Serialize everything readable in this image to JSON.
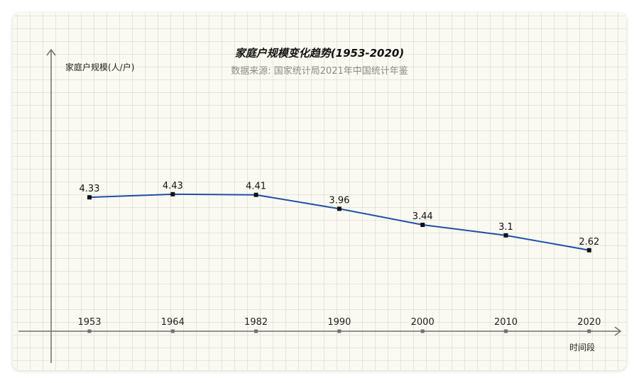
{
  "colors": {
    "line": "#1f4fa8",
    "marker": "#111111",
    "axis": "#6f6f6f",
    "background": "#fbfaf2"
  },
  "chart_data": {
    "type": "line",
    "title": "家庭户规模变化趋势(1953-2020)",
    "subtitle": "数据来源: 国家统计局2021年中国统计年鉴",
    "xlabel": "时间段",
    "ylabel": "家庭户规模(人/户)",
    "categories": [
      "1953",
      "1964",
      "1982",
      "1990",
      "2000",
      "2010",
      "2020"
    ],
    "series": [
      {
        "values": [
          4.33,
          4.43,
          4.41,
          3.96,
          3.44,
          3.1,
          2.62
        ],
        "labels": [
          "4.33",
          "4.43",
          "4.41",
          "3.96",
          "3.44",
          "3.1",
          "2.62"
        ]
      }
    ],
    "ylim": [
      0,
      6.4
    ],
    "grid": true,
    "legend": "none"
  }
}
